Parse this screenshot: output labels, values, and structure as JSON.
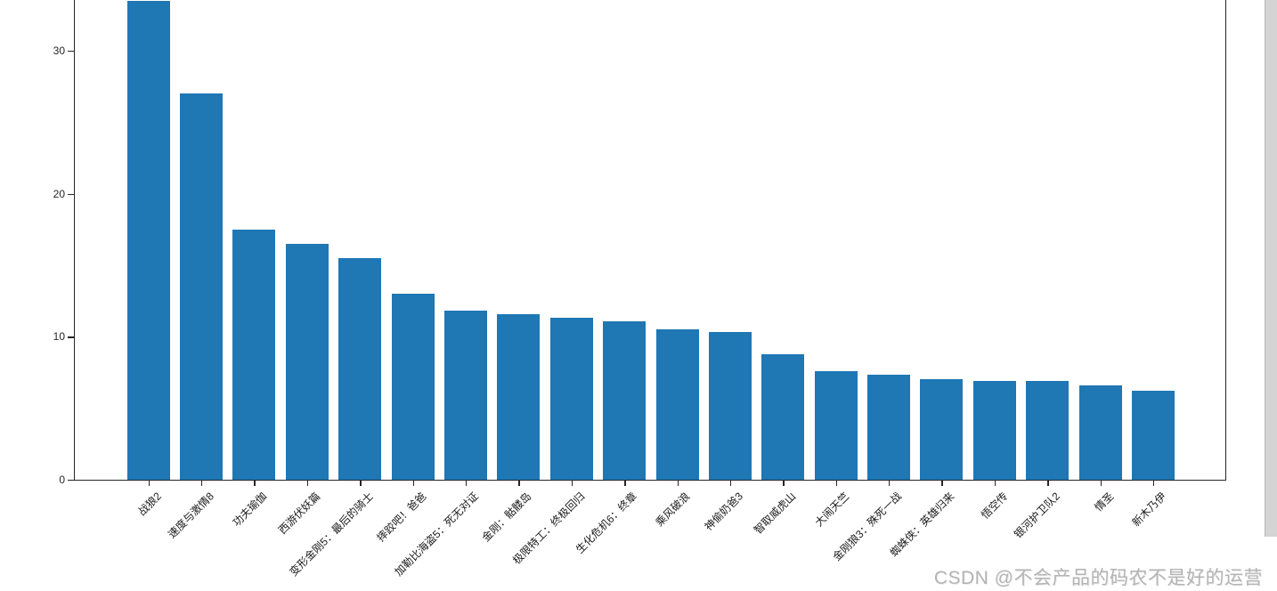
{
  "page": {
    "background": "#ffffff"
  },
  "watermark": {
    "text": "CSDN @不会产品的码农不是好的运营",
    "color": "#b4b4b4"
  },
  "scrollbar": {
    "present": true
  },
  "chart_data": {
    "type": "bar",
    "title": "",
    "xlabel": "",
    "ylabel": "",
    "categories": [
      "战狼2",
      "速度与激情8",
      "功夫瑜伽",
      "西游伏妖篇",
      "变形金刚5：最后的骑士",
      "摔跤吧！爸爸",
      "加勒比海盗5：死无对证",
      "金刚：骷髅岛",
      "极限特工：终极回归",
      "生化危机6：终章",
      "乘风破浪",
      "神偷奶爸3",
      "智取威虎山",
      "大闹天竺",
      "金刚狼3：殊死一战",
      "蜘蛛侠：英雄归来",
      "悟空传",
      "银河护卫队2",
      "情圣",
      "新木乃伊"
    ],
    "values": [
      33.5,
      27.0,
      17.5,
      16.5,
      15.5,
      13.0,
      11.8,
      11.6,
      11.3,
      11.1,
      10.5,
      10.3,
      8.8,
      7.6,
      7.35,
      7.05,
      6.9,
      6.88,
      6.6,
      6.25
    ],
    "yticks": [
      0,
      10,
      20,
      30
    ],
    "ylim": [
      0,
      33.5
    ],
    "bar_color": "#1f77b4",
    "axis_color": "#262626",
    "tick_label_color": "#262626",
    "grid": false,
    "legend": "none",
    "x_tick_rotation_deg": 45,
    "note": "tallest bar (战狼2) is clipped by the top edge of the screenshot"
  }
}
